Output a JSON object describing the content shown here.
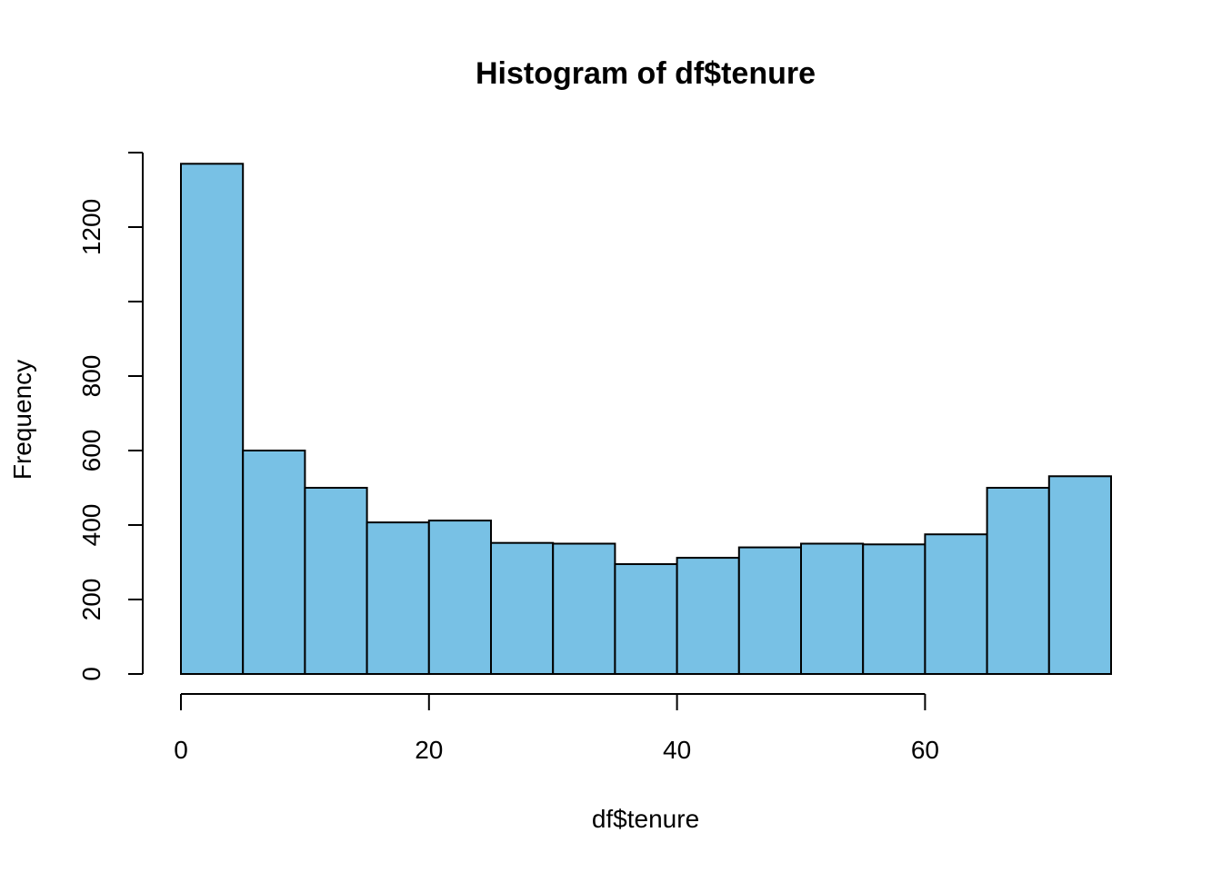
{
  "chart_data": {
    "type": "bar",
    "title": "Histogram of df$tenure",
    "xlabel": "df$tenure",
    "ylabel": "Frequency",
    "bin_edges": [
      0,
      5,
      10,
      15,
      20,
      25,
      30,
      35,
      40,
      45,
      50,
      55,
      60,
      65,
      70,
      75
    ],
    "values": [
      1370,
      600,
      500,
      407,
      412,
      352,
      350,
      295,
      312,
      340,
      350,
      348,
      375,
      500,
      531
    ],
    "xticks": [
      0,
      20,
      40,
      60
    ],
    "yticks": [
      0,
      200,
      400,
      600,
      800,
      1000,
      1200,
      1400
    ],
    "ytick_labels": [
      "0",
      "200",
      "400",
      "600",
      "800",
      "",
      "1200",
      ""
    ],
    "xlim": [
      0,
      75
    ],
    "ylim": [
      0,
      1400
    ],
    "grid": false,
    "colors": {
      "bar_fill": "#78c1e5",
      "bar_border": "#000000"
    }
  }
}
